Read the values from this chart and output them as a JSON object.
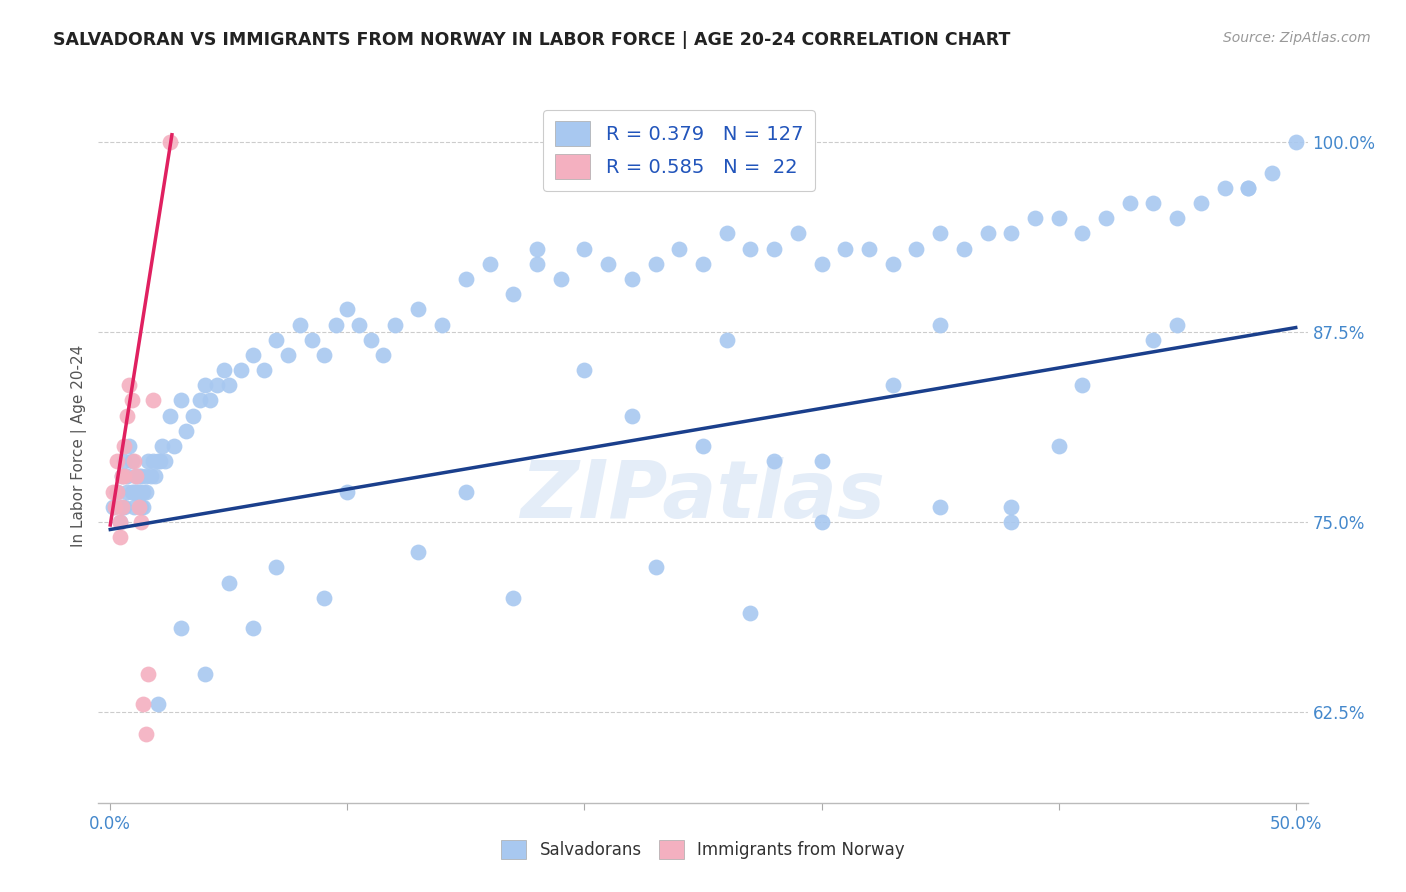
{
  "title": "SALVADORAN VS IMMIGRANTS FROM NORWAY IN LABOR FORCE | AGE 20-24 CORRELATION CHART",
  "source": "Source: ZipAtlas.com",
  "ylabel_label": "In Labor Force | Age 20-24",
  "watermark": "ZIPatlas",
  "xlim": [
    -0.005,
    0.505
  ],
  "ylim": [
    0.565,
    1.035
  ],
  "yticks": [
    0.625,
    0.75,
    0.875,
    1.0
  ],
  "ytick_labels": [
    "62.5%",
    "75.0%",
    "87.5%",
    "100.0%"
  ],
  "xticks": [
    0.0,
    0.1,
    0.2,
    0.3,
    0.4,
    0.5
  ],
  "blue_R": 0.379,
  "blue_N": 127,
  "pink_R": 0.585,
  "pink_N": 22,
  "blue_color": "#a8c8f0",
  "pink_color": "#f4b0c0",
  "blue_line_color": "#1a3f8c",
  "pink_line_color": "#e02060",
  "blue_line_x": [
    0.0,
    0.5
  ],
  "blue_line_y": [
    0.745,
    0.878
  ],
  "pink_line_x": [
    0.0,
    0.026
  ],
  "pink_line_y": [
    0.748,
    1.005
  ],
  "blue_scatter_x": [
    0.001,
    0.003,
    0.004,
    0.005,
    0.005,
    0.006,
    0.006,
    0.007,
    0.007,
    0.008,
    0.009,
    0.009,
    0.01,
    0.01,
    0.011,
    0.011,
    0.012,
    0.012,
    0.013,
    0.013,
    0.014,
    0.014,
    0.015,
    0.015,
    0.016,
    0.017,
    0.018,
    0.019,
    0.02,
    0.021,
    0.022,
    0.023,
    0.025,
    0.027,
    0.03,
    0.032,
    0.035,
    0.038,
    0.04,
    0.042,
    0.045,
    0.048,
    0.05,
    0.055,
    0.06,
    0.065,
    0.07,
    0.075,
    0.08,
    0.085,
    0.09,
    0.095,
    0.1,
    0.105,
    0.11,
    0.115,
    0.12,
    0.13,
    0.14,
    0.15,
    0.16,
    0.17,
    0.18,
    0.19,
    0.2,
    0.21,
    0.22,
    0.23,
    0.24,
    0.25,
    0.26,
    0.27,
    0.28,
    0.29,
    0.3,
    0.31,
    0.32,
    0.33,
    0.34,
    0.35,
    0.36,
    0.37,
    0.38,
    0.39,
    0.4,
    0.41,
    0.42,
    0.43,
    0.44,
    0.45,
    0.46,
    0.47,
    0.48,
    0.49,
    0.25,
    0.3,
    0.18,
    0.22,
    0.28,
    0.35,
    0.4,
    0.45,
    0.38,
    0.33,
    0.26,
    0.2,
    0.15,
    0.1,
    0.07,
    0.05,
    0.03,
    0.5,
    0.48,
    0.44,
    0.41,
    0.38,
    0.35,
    0.3,
    0.27,
    0.23,
    0.17,
    0.13,
    0.09,
    0.06,
    0.04,
    0.02
  ],
  "blue_scatter_y": [
    0.76,
    0.77,
    0.75,
    0.78,
    0.76,
    0.79,
    0.76,
    0.78,
    0.77,
    0.8,
    0.77,
    0.79,
    0.77,
    0.76,
    0.78,
    0.77,
    0.78,
    0.77,
    0.76,
    0.78,
    0.77,
    0.76,
    0.78,
    0.77,
    0.79,
    0.78,
    0.79,
    0.78,
    0.79,
    0.79,
    0.8,
    0.79,
    0.82,
    0.8,
    0.83,
    0.81,
    0.82,
    0.83,
    0.84,
    0.83,
    0.84,
    0.85,
    0.84,
    0.85,
    0.86,
    0.85,
    0.87,
    0.86,
    0.88,
    0.87,
    0.86,
    0.88,
    0.89,
    0.88,
    0.87,
    0.86,
    0.88,
    0.89,
    0.88,
    0.91,
    0.92,
    0.9,
    0.92,
    0.91,
    0.93,
    0.92,
    0.91,
    0.92,
    0.93,
    0.92,
    0.94,
    0.93,
    0.93,
    0.94,
    0.92,
    0.93,
    0.93,
    0.92,
    0.93,
    0.94,
    0.93,
    0.94,
    0.94,
    0.95,
    0.95,
    0.94,
    0.95,
    0.96,
    0.96,
    0.95,
    0.96,
    0.97,
    0.97,
    0.98,
    0.8,
    0.79,
    0.93,
    0.82,
    0.79,
    0.88,
    0.8,
    0.88,
    0.76,
    0.84,
    0.87,
    0.85,
    0.77,
    0.77,
    0.72,
    0.71,
    0.68,
    1.0,
    0.97,
    0.87,
    0.84,
    0.75,
    0.76,
    0.75,
    0.69,
    0.72,
    0.7,
    0.73,
    0.7,
    0.68,
    0.65,
    0.63
  ],
  "pink_scatter_x": [
    0.001,
    0.002,
    0.003,
    0.003,
    0.004,
    0.004,
    0.005,
    0.005,
    0.006,
    0.006,
    0.007,
    0.008,
    0.009,
    0.01,
    0.011,
    0.012,
    0.013,
    0.014,
    0.015,
    0.016,
    0.018,
    0.025
  ],
  "pink_scatter_y": [
    0.77,
    0.76,
    0.79,
    0.77,
    0.75,
    0.74,
    0.78,
    0.76,
    0.8,
    0.78,
    0.82,
    0.84,
    0.83,
    0.79,
    0.78,
    0.76,
    0.75,
    0.63,
    0.61,
    0.65,
    0.83,
    1.0
  ]
}
